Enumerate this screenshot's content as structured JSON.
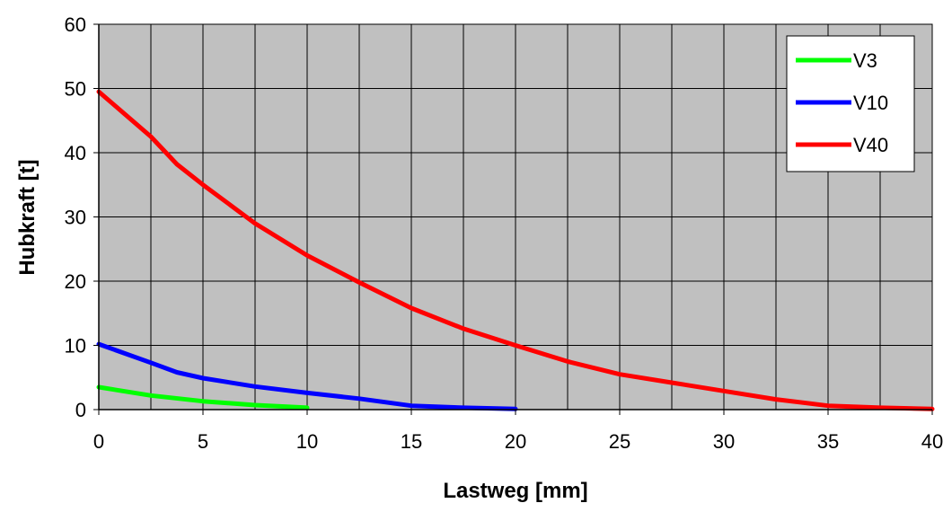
{
  "chart_data": {
    "type": "line",
    "xlabel": "Lastweg [mm]",
    "ylabel": "Hubkraft [t]",
    "xlim": [
      0,
      40
    ],
    "ylim": [
      0,
      60
    ],
    "x_ticks": [
      "0",
      "5",
      "10",
      "15",
      "20",
      "25",
      "30",
      "35",
      "40"
    ],
    "y_ticks": [
      "0",
      "10",
      "20",
      "30",
      "40",
      "50",
      "60"
    ],
    "grid": true,
    "minor_x_grid_step": 2.5,
    "background_color": "#c0c0c0",
    "legend_position": "top-right",
    "series": [
      {
        "name": "V3",
        "color": "#00ff00",
        "x": [
          0,
          2.5,
          5,
          7.5,
          10
        ],
        "y": [
          3.5,
          2.2,
          1.3,
          0.7,
          0.3
        ]
      },
      {
        "name": "V10",
        "color": "#0000ff",
        "x": [
          0,
          2.5,
          3.75,
          5,
          7.5,
          10,
          12.5,
          15,
          17.5,
          20
        ],
        "y": [
          10.2,
          7.3,
          5.8,
          4.9,
          3.6,
          2.6,
          1.7,
          0.6,
          0.3,
          0.1
        ]
      },
      {
        "name": "V40",
        "color": "#ff0000",
        "x": [
          0,
          2.5,
          3.75,
          5,
          7.5,
          10,
          12.5,
          15,
          17.5,
          20,
          22.5,
          25,
          27.5,
          30,
          32.5,
          35,
          37.5,
          40
        ],
        "y": [
          49.5,
          42.5,
          38.2,
          35,
          29,
          24,
          19.8,
          15.8,
          12.6,
          10,
          7.5,
          5.5,
          4.2,
          2.9,
          1.6,
          0.6,
          0.3,
          0.1
        ]
      }
    ]
  }
}
